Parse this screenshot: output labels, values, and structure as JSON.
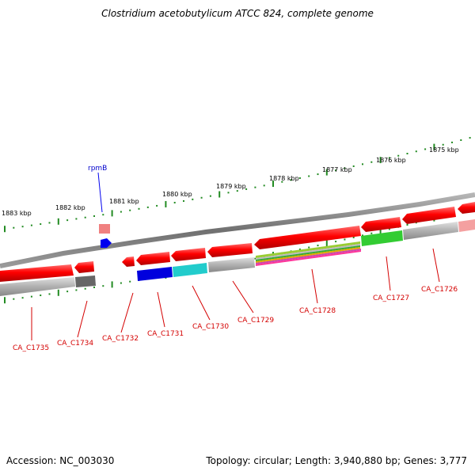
{
  "title": "Clostridium acetobutylicum ATCC 824, complete genome",
  "footer": {
    "accession": "Accession: NC_003030",
    "summary": "Topology: circular; Length: 3,940,880 bp; Genes: 3,777"
  },
  "scale_labels": [
    "1883 kbp",
    "1882 kbp",
    "1881 kbp",
    "1880 kbp",
    "1879 kbp",
    "1878 kbp",
    "1877 kbp",
    "1876 kbp",
    "1875 kbp"
  ],
  "gene_labels": [
    "CA_C1735",
    "CA_C1734",
    "CA_C1732",
    "CA_C1731",
    "CA_C1730",
    "CA_C1729",
    "CA_C1728",
    "CA_C1727",
    "CA_C1726"
  ],
  "rna_label": "rpmB",
  "colors": {
    "gene_arrow": "#ff0000",
    "backbone": "#808080",
    "tick": "#228b22",
    "gene_label": "#d40000",
    "rna": "#0000ee",
    "cog_blue": "#0000dd",
    "cog_cyan": "#22cccc",
    "cog_green": "#33cc33",
    "cog_gray": "#bbbbbb",
    "cog_dark": "#666666"
  }
}
